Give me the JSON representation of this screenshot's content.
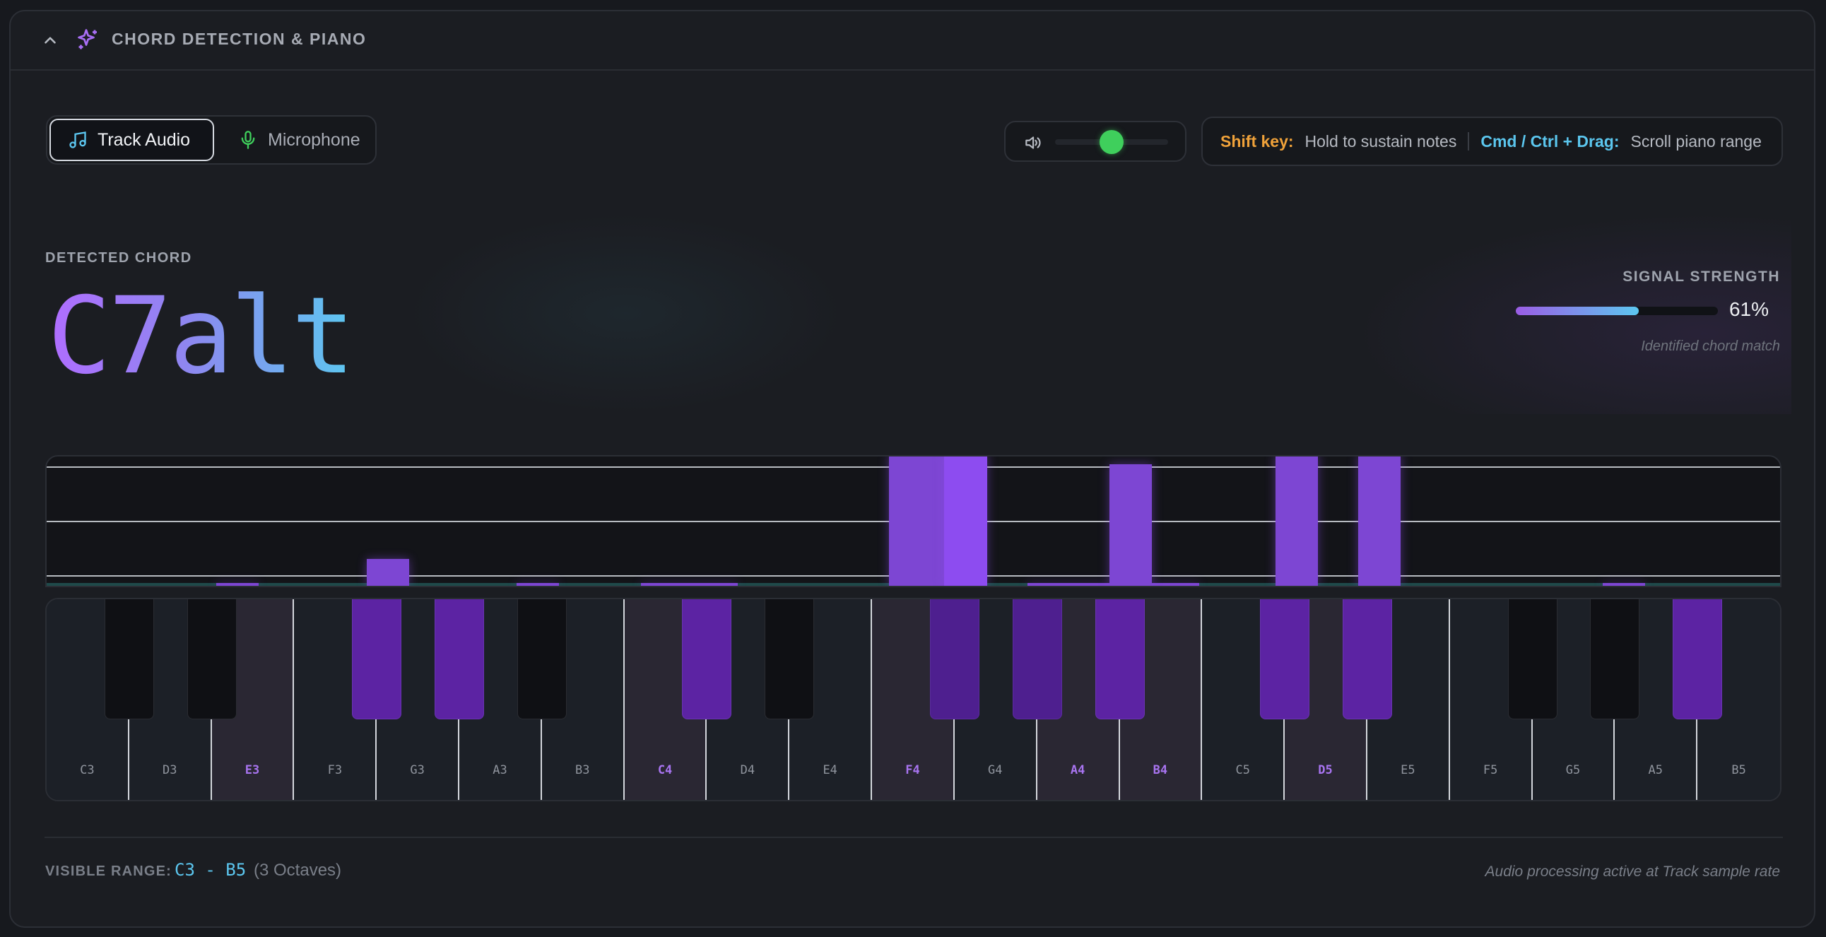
{
  "header": {
    "title": "CHORD DETECTION & PIANO"
  },
  "source_toggle": {
    "track_label": "Track Audio",
    "mic_label": "Microphone",
    "selected": "Track Audio"
  },
  "volume": {
    "level": 0.5,
    "knob_color": "#3fcf5c"
  },
  "shortcuts": {
    "shift_key": "Shift key:",
    "shift_desc": "Hold to sustain notes",
    "cmd_key": "Cmd / Ctrl + Drag:",
    "cmd_desc": "Scroll piano range"
  },
  "detection": {
    "label": "DETECTED CHORD",
    "chord": "C7alt",
    "signal_label": "SIGNAL STRENGTH",
    "signal_value": "61%",
    "signal_fraction": 0.61,
    "signal_sub": "Identified chord match"
  },
  "keyboard": {
    "white_keys": [
      "C3",
      "D3",
      "E3",
      "F3",
      "G3",
      "A3",
      "B3",
      "C4",
      "D4",
      "E4",
      "F4",
      "G4",
      "A4",
      "B4",
      "C5",
      "D5",
      "E5",
      "F5",
      "G5",
      "A5",
      "B5"
    ],
    "highlighted_white": [
      "E3",
      "C4",
      "F4",
      "A4",
      "B4",
      "D5"
    ],
    "active_black": [
      "F#3",
      "G#3",
      "C#4",
      "F#4",
      "G#4",
      "A#4",
      "C#5",
      "D#5",
      "A#5"
    ]
  },
  "footer": {
    "range_label": "VISIBLE RANGE:",
    "range_value": "C3 - B5",
    "range_octaves": "(3 Octaves)",
    "note": "Audio processing active at Track sample rate"
  },
  "colors": {
    "accent_purple": "#7d46d3",
    "accent_cyan": "#5cc7f0",
    "shift_orange": "#f0a23a"
  }
}
